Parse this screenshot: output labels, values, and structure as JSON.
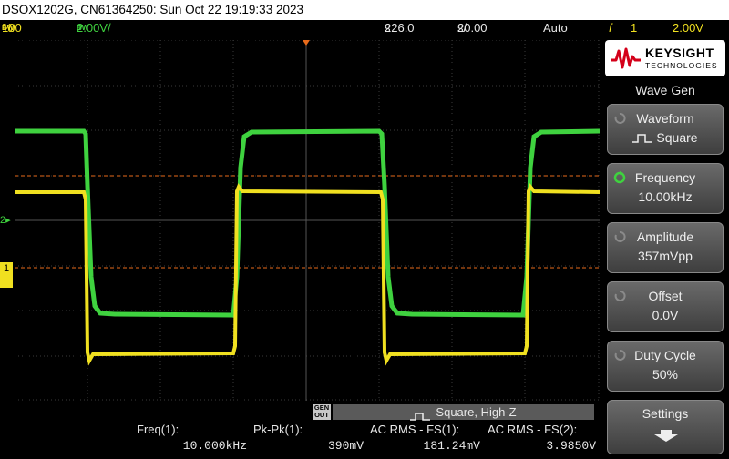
{
  "title": "DSOX1202G, CN61364250: Sun Oct 22 19:19:33 2023",
  "status": {
    "ch1_bw": "BW",
    "ch1_scale": "100",
    "ch1_unit": "%/",
    "ch2_bw": "BW",
    "ch2_scale": "2.00V/",
    "time_pos": "226.0",
    "time_pos_unit": "s",
    "time_scale": "20.00",
    "time_scale_unit": "s/",
    "trigger_mode": "Auto",
    "trigger_edge": "f",
    "trigger_channel": "1",
    "trigger_level": "2.00V"
  },
  "colors": {
    "ch1": "#f0e020",
    "ch2": "#3fd23f",
    "cursor": "#e86a1a"
  },
  "markers": {
    "ch2_marker": "2",
    "ch1_marker": "1"
  },
  "genout": {
    "line1": "GEN",
    "line2": "OUT"
  },
  "gen_status": "Square, High-Z",
  "measurements": [
    {
      "label": "Freq(1):",
      "value": "10.000kHz"
    },
    {
      "label": "Pk-Pk(1):",
      "value": "390mV"
    },
    {
      "label": "AC RMS - FS(1):",
      "value": "181.24mV"
    },
    {
      "label": "AC RMS - FS(2):",
      "value": "3.9850V"
    }
  ],
  "logo": {
    "brand": "KEYSIGHT",
    "sub": "TECHNOLOGIES"
  },
  "menu_title": "Wave Gen",
  "softkeys": [
    {
      "label": "Waveform",
      "value": "Square",
      "active": false
    },
    {
      "label": "Frequency",
      "value": "10.00kHz",
      "active": true
    },
    {
      "label": "Amplitude",
      "value": "357mVpp",
      "active": false
    },
    {
      "label": "Offset",
      "value": "0.0V",
      "active": false
    },
    {
      "label": "Duty Cycle",
      "value": "50%",
      "active": false
    },
    {
      "label": "Settings",
      "value": "",
      "active": false
    }
  ]
}
